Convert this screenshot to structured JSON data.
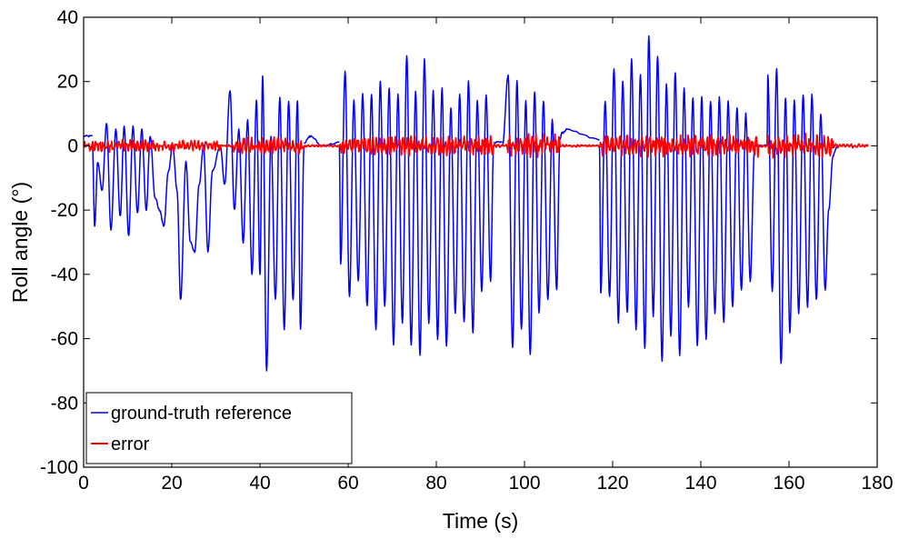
{
  "chart_data": {
    "type": "line",
    "title": "",
    "xlabel": "Time (s)",
    "ylabel": "Roll angle (°)",
    "xlim": [
      0,
      180
    ],
    "ylim": [
      -100,
      40
    ],
    "xticks": [
      0,
      20,
      40,
      60,
      80,
      100,
      120,
      140,
      160,
      180
    ],
    "yticks": [
      40,
      20,
      0,
      -20,
      -40,
      -60,
      -80,
      -100
    ],
    "grid": false,
    "legend_position": "bottom-left",
    "series": [
      {
        "name": "ground-truth reference",
        "color": "#0000ff",
        "segments": [
          {
            "x0": 0,
            "x1": 2,
            "base": 3,
            "peaks": []
          },
          {
            "x0": 2,
            "x1": 31,
            "base": 0,
            "peaks": [
              [
                2.5,
                -25
              ],
              [
                3.2,
                -5
              ],
              [
                4.2,
                -14
              ],
              [
                5.2,
                7
              ],
              [
                6.2,
                -26
              ],
              [
                7.3,
                5
              ],
              [
                8.3,
                -22
              ],
              [
                9.2,
                6
              ],
              [
                10.2,
                -28
              ],
              [
                11.2,
                6
              ],
              [
                12.2,
                -21
              ],
              [
                13.2,
                5
              ],
              [
                14.2,
                -20
              ],
              [
                15.1,
                3
              ],
              [
                16.2,
                -16
              ],
              [
                17.2,
                -20
              ],
              [
                18.2,
                -25
              ],
              [
                19.2,
                -8
              ],
              [
                20.2,
                0
              ],
              [
                21.2,
                -14
              ],
              [
                22.0,
                -48
              ],
              [
                23.2,
                -5
              ],
              [
                24.2,
                -30
              ],
              [
                25.2,
                -33
              ],
              [
                26.2,
                -12
              ],
              [
                27.2,
                0
              ],
              [
                28.2,
                -33
              ],
              [
                29.2,
                -8
              ]
            ]
          },
          {
            "x0": 31,
            "x1": 50,
            "base": 0,
            "peaks": [
              [
                32.0,
                -12
              ],
              [
                33.2,
                17
              ],
              [
                34.2,
                -20
              ],
              [
                35.2,
                5
              ],
              [
                36.2,
                -30
              ],
              [
                37.2,
                8
              ],
              [
                38.2,
                -40
              ],
              [
                39.2,
                14
              ],
              [
                40.0,
                -40
              ],
              [
                40.6,
                22
              ],
              [
                41.5,
                -70
              ],
              [
                42.5,
                3
              ],
              [
                43.5,
                -48
              ],
              [
                44.5,
                15
              ],
              [
                45.5,
                -57
              ],
              [
                46.5,
                14
              ],
              [
                47.5,
                -48
              ],
              [
                48.5,
                14
              ],
              [
                49.2,
                -57
              ]
            ]
          },
          {
            "x0": 50,
            "x1": 58,
            "base": 1,
            "peaks": [
              [
                51.5,
                3
              ],
              [
                54,
                0
              ]
            ]
          },
          {
            "x0": 58,
            "x1": 93,
            "base": 0,
            "peaks": [
              [
                58.3,
                -37
              ],
              [
                59.3,
                23
              ],
              [
                60.3,
                -47
              ],
              [
                61.3,
                14
              ],
              [
                62.3,
                -42
              ],
              [
                63.3,
                16
              ],
              [
                64.3,
                -50
              ],
              [
                65.3,
                16
              ],
              [
                66.3,
                -57
              ],
              [
                67.3,
                20
              ],
              [
                68.3,
                -50
              ],
              [
                69.3,
                18
              ],
              [
                70.3,
                -62
              ],
              [
                71.3,
                16
              ],
              [
                72.3,
                -55
              ],
              [
                73.3,
                28
              ],
              [
                74.3,
                -62
              ],
              [
                75.3,
                17
              ],
              [
                76.3,
                -65
              ],
              [
                77.3,
                27
              ],
              [
                78.3,
                -55
              ],
              [
                79.3,
                17
              ],
              [
                80.3,
                -60
              ],
              [
                81.3,
                18
              ],
              [
                82.3,
                -62
              ],
              [
                83.3,
                12
              ],
              [
                84.3,
                -52
              ],
              [
                85.3,
                16
              ],
              [
                86.3,
                -55
              ],
              [
                87.3,
                20
              ],
              [
                88.3,
                -58
              ],
              [
                89.3,
                14
              ],
              [
                90.3,
                -45
              ],
              [
                91.3,
                16
              ],
              [
                92.3,
                -42
              ]
            ]
          },
          {
            "x0": 93,
            "x1": 95,
            "base": 1,
            "peaks": []
          },
          {
            "x0": 95,
            "x1": 108,
            "base": 0,
            "peaks": [
              [
                96.3,
                22
              ],
              [
                97.3,
                -63
              ],
              [
                98.3,
                20
              ],
              [
                99.3,
                -57
              ],
              [
                100.3,
                14
              ],
              [
                101.3,
                -65
              ],
              [
                102.3,
                17
              ],
              [
                103.3,
                -52
              ],
              [
                104.3,
                14
              ],
              [
                105.3,
                -48
              ],
              [
                106.3,
                8
              ],
              [
                107.3,
                -45
              ]
            ]
          },
          {
            "x0": 108,
            "x1": 117,
            "base": 2,
            "peaks": [
              [
                108.5,
                4
              ],
              [
                109.5,
                5
              ]
            ]
          },
          {
            "x0": 117,
            "x1": 153,
            "base": 0,
            "peaks": [
              [
                117.3,
                -46
              ],
              [
                118.3,
                14
              ],
              [
                119.3,
                -47
              ],
              [
                120.3,
                24
              ],
              [
                121.3,
                -55
              ],
              [
                122.3,
                20
              ],
              [
                123.3,
                -52
              ],
              [
                124.3,
                27
              ],
              [
                125.3,
                -57
              ],
              [
                126.3,
                22
              ],
              [
                127.3,
                -63
              ],
              [
                128.2,
                34
              ],
              [
                129.2,
                -53
              ],
              [
                130.2,
                28
              ],
              [
                131.2,
                -67
              ],
              [
                132.2,
                19
              ],
              [
                133.2,
                -59
              ],
              [
                134.2,
                23
              ],
              [
                135.2,
                -65
              ],
              [
                136.2,
                18
              ],
              [
                137.2,
                -50
              ],
              [
                138.2,
                15
              ],
              [
                139.2,
                -62
              ],
              [
                140.2,
                15
              ],
              [
                141.2,
                -60
              ],
              [
                142.2,
                14
              ],
              [
                143.2,
                -52
              ],
              [
                144.2,
                15
              ],
              [
                145.2,
                -55
              ],
              [
                146.2,
                14
              ],
              [
                147.2,
                -50
              ],
              [
                148.2,
                12
              ],
              [
                149.2,
                -45
              ],
              [
                150.2,
                10
              ],
              [
                151.2,
                -42
              ],
              [
                152.2,
                0
              ]
            ]
          },
          {
            "x0": 153,
            "x1": 155,
            "base": 0,
            "peaks": []
          },
          {
            "x0": 155,
            "x1": 171,
            "base": 0,
            "peaks": [
              [
                155.2,
                22
              ],
              [
                156.2,
                -45
              ],
              [
                157.2,
                24
              ],
              [
                158.2,
                -68
              ],
              [
                159.2,
                15
              ],
              [
                160.2,
                -58
              ],
              [
                161.2,
                14
              ],
              [
                162.2,
                -52
              ],
              [
                163.2,
                16
              ],
              [
                164.2,
                -50
              ],
              [
                165.2,
                16
              ],
              [
                166.2,
                -48
              ],
              [
                167.2,
                10
              ],
              [
                168.2,
                -45
              ],
              [
                169.0,
                -20
              ],
              [
                170.0,
                -3
              ]
            ]
          }
        ]
      },
      {
        "name": "error",
        "color": "#ff0000",
        "x_start": 0,
        "x_end": 178,
        "segments": [
          {
            "x0": 0,
            "x1": 31,
            "amp": 1.5
          },
          {
            "x0": 31,
            "x1": 34,
            "amp": 0.3
          },
          {
            "x0": 34,
            "x1": 50,
            "amp": 2.2
          },
          {
            "x0": 50,
            "x1": 58,
            "amp": 0.3
          },
          {
            "x0": 58,
            "x1": 93,
            "amp": 2.5
          },
          {
            "x0": 93,
            "x1": 96,
            "amp": 0.4
          },
          {
            "x0": 96,
            "x1": 108,
            "amp": 3
          },
          {
            "x0": 108,
            "x1": 117,
            "amp": 0.3
          },
          {
            "x0": 117,
            "x1": 153,
            "amp": 2.8
          },
          {
            "x0": 153,
            "x1": 155,
            "amp": 0.3
          },
          {
            "x0": 155,
            "x1": 170,
            "amp": 3
          },
          {
            "x0": 170,
            "x1": 178,
            "amp": 0.5
          }
        ]
      }
    ]
  }
}
